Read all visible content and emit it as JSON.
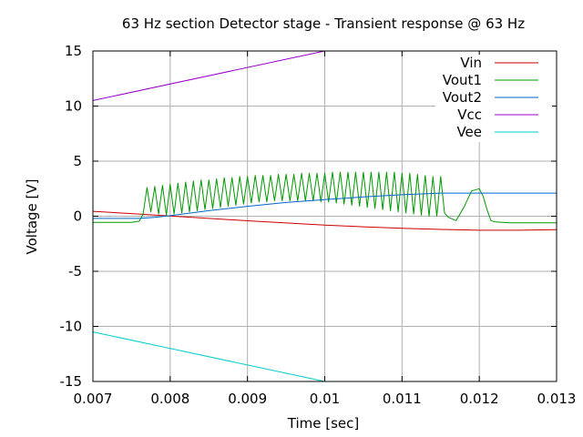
{
  "chart_data": {
    "type": "line",
    "title": "63 Hz section Detector stage - Transient response @ 63 Hz",
    "xlabel": "Time [sec]",
    "ylabel": "Voltage [V]",
    "xlim": [
      0.007,
      0.013
    ],
    "ylim": [
      -15,
      15
    ],
    "xticks": [
      0.007,
      0.008,
      0.009,
      0.01,
      0.011,
      0.012,
      0.013
    ],
    "xtick_labels": [
      "0.007",
      "0.008",
      "0.009",
      "0.01",
      "0.011",
      "0.012",
      "0.013"
    ],
    "yticks": [
      -15,
      -10,
      -5,
      0,
      5,
      10,
      15
    ],
    "ytick_labels": [
      "-15",
      "-10",
      "-5",
      "0",
      "5",
      "10",
      "15"
    ],
    "grid": true,
    "legend_position": "top-right",
    "series": [
      {
        "name": "Vin",
        "color": "#cc0000",
        "x": [
          0.007,
          0.0075,
          0.008,
          0.0085,
          0.009,
          0.0095,
          0.01,
          0.0105,
          0.011,
          0.0115,
          0.012,
          0.0125,
          0.013
        ],
        "y": [
          0.45,
          0.24,
          0.02,
          -0.2,
          -0.41,
          -0.61,
          -0.8,
          -0.96,
          -1.1,
          -1.2,
          -1.27,
          -1.27,
          -1.22
        ]
      },
      {
        "name": "Vout1",
        "color": "#009900",
        "x": [
          0.007,
          0.0075,
          0.0076,
          0.00765,
          0.0077,
          0.00775,
          0.0078,
          0.00785,
          0.0079,
          0.00795,
          0.008,
          0.00805,
          0.0081,
          0.00815,
          0.0082,
          0.00825,
          0.0083,
          0.00835,
          0.0084,
          0.00845,
          0.0085,
          0.00855,
          0.0086,
          0.00865,
          0.0087,
          0.00875,
          0.0088,
          0.00885,
          0.0089,
          0.00895,
          0.009,
          0.00905,
          0.0091,
          0.00915,
          0.0092,
          0.00925,
          0.0093,
          0.00935,
          0.0094,
          0.00945,
          0.0095,
          0.00955,
          0.0096,
          0.00965,
          0.0097,
          0.00975,
          0.0098,
          0.00985,
          0.0099,
          0.00995,
          0.01,
          0.01005,
          0.0101,
          0.01015,
          0.0102,
          0.01025,
          0.0103,
          0.01035,
          0.0104,
          0.01045,
          0.0105,
          0.01055,
          0.0106,
          0.01065,
          0.0107,
          0.01075,
          0.0108,
          0.01085,
          0.0109,
          0.01095,
          0.011,
          0.01105,
          0.0111,
          0.01115,
          0.0112,
          0.01125,
          0.0113,
          0.01135,
          0.0114,
          0.01145,
          0.0115,
          0.01155,
          0.0116,
          0.0117,
          0.0118,
          0.0119,
          0.012,
          0.01205,
          0.0121,
          0.01215,
          0.0122,
          0.0123,
          0.0124,
          0.0125,
          0.013
        ],
        "y": [
          -0.55,
          -0.55,
          -0.45,
          0.2,
          2.6,
          0.4,
          2.7,
          0.2,
          2.8,
          0.1,
          2.9,
          0.2,
          3.0,
          0.3,
          3.1,
          0.4,
          3.2,
          0.5,
          3.3,
          0.6,
          3.3,
          0.7,
          3.4,
          0.8,
          3.5,
          0.9,
          3.5,
          1.0,
          3.6,
          1.1,
          3.6,
          1.2,
          3.7,
          1.3,
          3.7,
          1.3,
          3.7,
          1.4,
          3.8,
          1.4,
          3.8,
          1.4,
          3.8,
          1.4,
          3.9,
          1.4,
          3.9,
          1.4,
          3.9,
          1.3,
          3.9,
          1.3,
          4.0,
          1.2,
          4.0,
          1.1,
          4.0,
          1.0,
          4.0,
          0.9,
          4.0,
          0.8,
          4.0,
          0.7,
          4.0,
          0.6,
          4.0,
          0.5,
          4.0,
          0.4,
          3.9,
          0.3,
          3.9,
          0.2,
          3.8,
          0.1,
          3.7,
          0.0,
          3.6,
          0.0,
          3.6,
          0.3,
          -0.1,
          -0.4,
          0.8,
          2.3,
          2.5,
          1.8,
          0.6,
          -0.4,
          -0.5,
          -0.55,
          -0.6,
          -0.6,
          -0.6
        ]
      },
      {
        "name": "Vout2",
        "color": "#0066cc",
        "x": [
          0.007,
          0.0076,
          0.0078,
          0.008,
          0.0085,
          0.009,
          0.0095,
          0.01,
          0.0105,
          0.011,
          0.0115,
          0.012,
          0.0125,
          0.013
        ],
        "y": [
          -0.2,
          -0.2,
          -0.1,
          0.05,
          0.5,
          0.9,
          1.25,
          1.5,
          1.75,
          1.95,
          2.1,
          2.1,
          2.1,
          2.1
        ]
      },
      {
        "name": "Vcc",
        "color": "#9900cc",
        "x": [
          0.007,
          0.01
        ],
        "y": [
          10.5,
          15
        ]
      },
      {
        "name": "Vee",
        "color": "#00cccc",
        "x": [
          0.007,
          0.01
        ],
        "y": [
          -10.5,
          -15
        ]
      }
    ]
  }
}
